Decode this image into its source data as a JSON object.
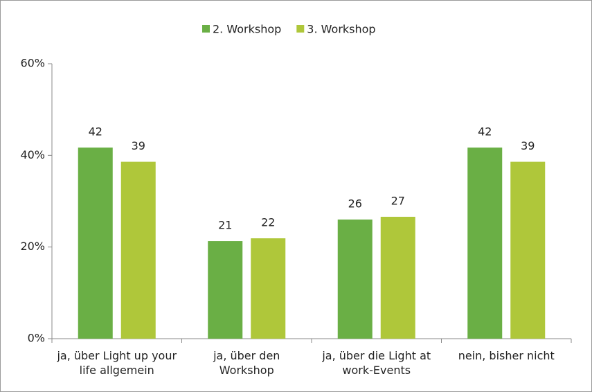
{
  "chart_data": {
    "type": "bar",
    "categories": [
      "ja, über Light up your life allgemein",
      "ja, über den Workshop",
      "ja, über die Light at work-Events",
      "nein, bisher nicht"
    ],
    "series": [
      {
        "name": "2. Workshop",
        "color": "#6aaf45",
        "values": [
          41.7,
          21.3,
          26.0,
          41.7
        ],
        "value_labels": [
          "42",
          "21",
          "26",
          "42"
        ]
      },
      {
        "name": "3. Workshop",
        "color": "#afc73a",
        "values": [
          38.6,
          21.9,
          26.6,
          38.6
        ],
        "value_labels": [
          "39",
          "22",
          "27",
          "39"
        ]
      }
    ],
    "ylim": [
      0,
      60
    ],
    "yticks": [
      {
        "value": 0,
        "label": "0%"
      },
      {
        "value": 20,
        "label": "20%"
      },
      {
        "value": 40,
        "label": "40%"
      },
      {
        "value": 60,
        "label": "60%"
      }
    ],
    "legend": "top"
  }
}
